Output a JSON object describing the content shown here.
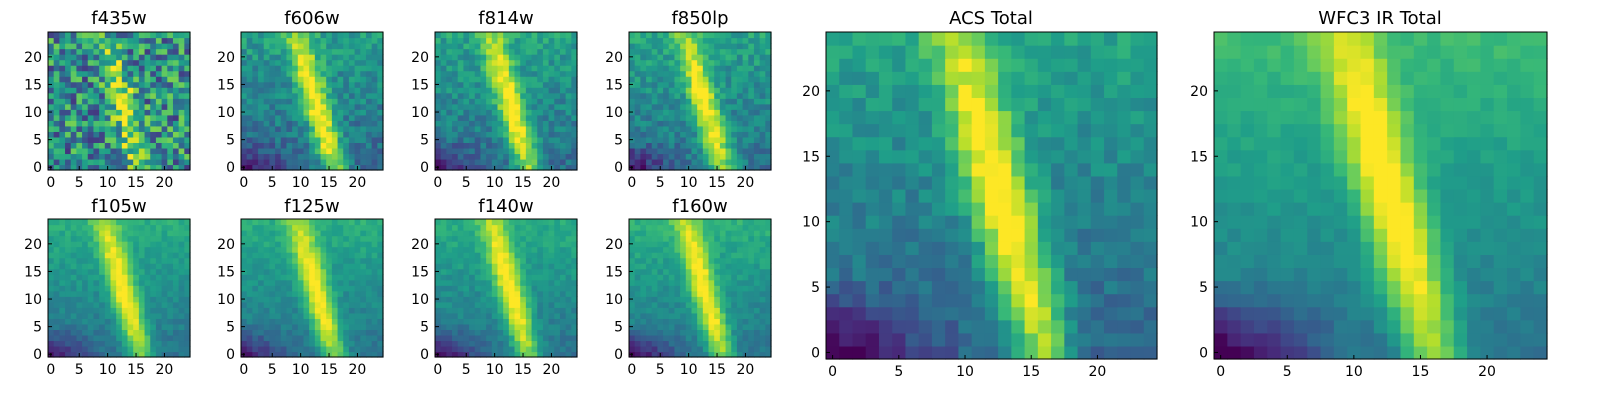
{
  "chart_data": {
    "type": "heatmap",
    "colormap": "viridis",
    "panels": [
      {
        "title": "f435w",
        "xticks": [
          "0",
          "5",
          "10",
          "15",
          "20"
        ],
        "yticks": [
          "0",
          "5",
          "10",
          "15",
          "20"
        ],
        "xlim": [
          0,
          24
        ],
        "ylim": [
          0,
          24
        ],
        "noise": 0.32,
        "bg": 0.48,
        "gradient": 0.0,
        "peak": 0.42,
        "low_left": 0.05
      },
      {
        "title": "f606w",
        "xticks": [
          "0",
          "5",
          "10",
          "15",
          "20"
        ],
        "yticks": [
          "0",
          "5",
          "10",
          "15",
          "20"
        ],
        "xlim": [
          0,
          24
        ],
        "ylim": [
          0,
          24
        ],
        "noise": 0.12,
        "bg": 0.34,
        "gradient": 0.22,
        "peak": 0.62,
        "low_left": 0.18
      },
      {
        "title": "f814w",
        "xticks": [
          "0",
          "5",
          "10",
          "15",
          "20"
        ],
        "yticks": [
          "0",
          "5",
          "10",
          "15",
          "20"
        ],
        "xlim": [
          0,
          24
        ],
        "ylim": [
          0,
          24
        ],
        "noise": 0.11,
        "bg": 0.36,
        "gradient": 0.22,
        "peak": 0.6,
        "low_left": 0.22
      },
      {
        "title": "f850lp",
        "xticks": [
          "0",
          "5",
          "10",
          "15",
          "20"
        ],
        "yticks": [
          "0",
          "5",
          "10",
          "15",
          "20"
        ],
        "xlim": [
          0,
          24
        ],
        "ylim": [
          0,
          24
        ],
        "noise": 0.11,
        "bg": 0.38,
        "gradient": 0.2,
        "peak": 0.58,
        "low_left": 0.24
      },
      {
        "title": "f105w",
        "xticks": [
          "0",
          "5",
          "10",
          "15",
          "20"
        ],
        "yticks": [
          "0",
          "5",
          "10",
          "15",
          "20"
        ],
        "xlim": [
          0,
          24
        ],
        "ylim": [
          0,
          24
        ],
        "noise": 0.06,
        "bg": 0.38,
        "gradient": 0.24,
        "peak": 0.56,
        "low_left": 0.24
      },
      {
        "title": "f125w",
        "xticks": [
          "0",
          "5",
          "10",
          "15",
          "20"
        ],
        "yticks": [
          "0",
          "5",
          "10",
          "15",
          "20"
        ],
        "xlim": [
          0,
          24
        ],
        "ylim": [
          0,
          24
        ],
        "noise": 0.06,
        "bg": 0.38,
        "gradient": 0.24,
        "peak": 0.56,
        "low_left": 0.24
      },
      {
        "title": "f140w",
        "xticks": [
          "0",
          "5",
          "10",
          "15",
          "20"
        ],
        "yticks": [
          "0",
          "5",
          "10",
          "15",
          "20"
        ],
        "xlim": [
          0,
          24
        ],
        "ylim": [
          0,
          24
        ],
        "noise": 0.06,
        "bg": 0.38,
        "gradient": 0.24,
        "peak": 0.56,
        "low_left": 0.26
      },
      {
        "title": "f160w",
        "xticks": [
          "0",
          "5",
          "10",
          "15",
          "20"
        ],
        "yticks": [
          "0",
          "5",
          "10",
          "15",
          "20"
        ],
        "xlim": [
          0,
          24
        ],
        "ylim": [
          0,
          24
        ],
        "noise": 0.06,
        "bg": 0.38,
        "gradient": 0.26,
        "peak": 0.56,
        "low_left": 0.28
      },
      {
        "title": "ACS Total",
        "xticks": [
          "0",
          "5",
          "10",
          "15",
          "20"
        ],
        "yticks": [
          "0",
          "5",
          "10",
          "15",
          "20"
        ],
        "xlim": [
          0,
          24
        ],
        "ylim": [
          0,
          24
        ],
        "noise": 0.08,
        "bg": 0.32,
        "gradient": 0.26,
        "peak": 0.64,
        "low_left": 0.25
      },
      {
        "title": "WFC3 IR Total",
        "xticks": [
          "0",
          "5",
          "10",
          "15",
          "20"
        ],
        "yticks": [
          "0",
          "5",
          "10",
          "15",
          "20"
        ],
        "xlim": [
          0,
          24
        ],
        "ylim": [
          0,
          24
        ],
        "noise": 0.04,
        "bg": 0.38,
        "gradient": 0.3,
        "peak": 0.58,
        "low_left": 0.3
      }
    ]
  }
}
